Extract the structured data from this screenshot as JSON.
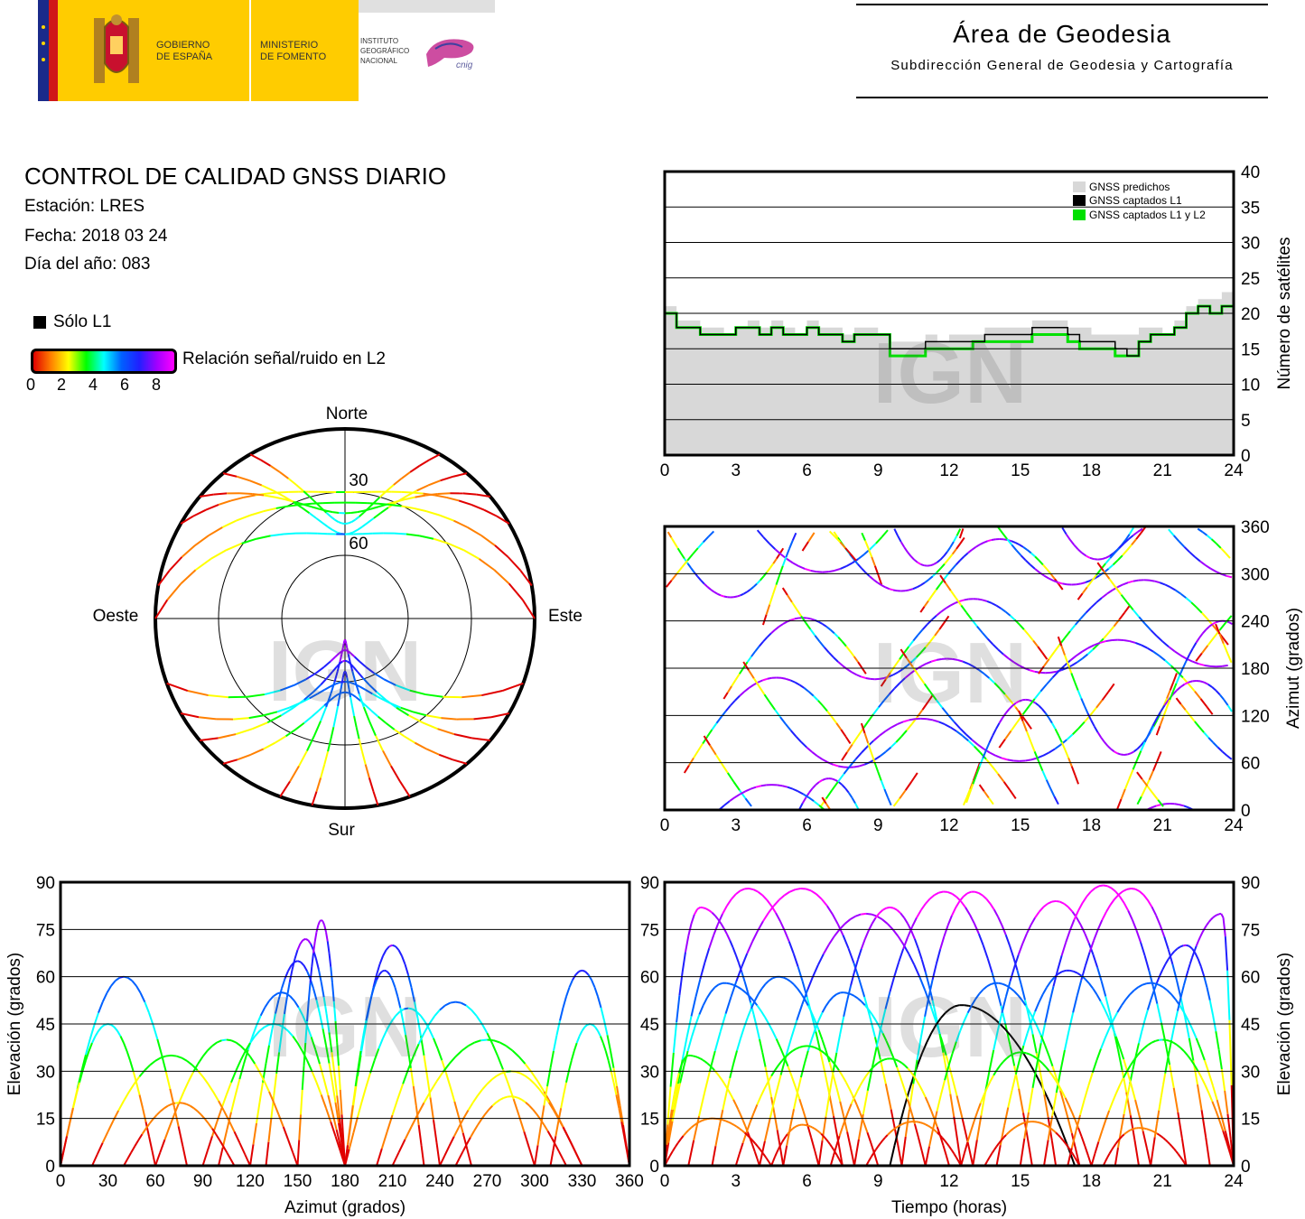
{
  "header": {
    "gov_logo": {
      "text1": "GOBIERNO",
      "text2": "DE ESPAÑA"
    },
    "ministry": {
      "text1": "MINISTERIO",
      "text2": "DE FOMENTO"
    },
    "institute": {
      "text1": "INSTITUTO",
      "text2": "GEOGRÁFICO",
      "text3": "NACIONAL",
      "mark": "cnig"
    },
    "area_title": "Área de Geodesia",
    "area_subtitle": "Subdirección General de Geodesia y Cartografía"
  },
  "info": {
    "title": "CONTROL DE CALIDAD GNSS DIARIO",
    "station": "Estación: LRES",
    "date": "Fecha: 2018 03 24",
    "doy": "Día del año: 083",
    "legend_l1": "Sólo L1",
    "colorbar_label": "Relación señal/ruido en L2",
    "colorbar_ticks": [
      "0",
      "2",
      "4",
      "6",
      "8"
    ]
  },
  "watermark": "IGN",
  "colors": {
    "predicted": "#d8d8d8",
    "l1": "#000000",
    "l1l2": "#00e000",
    "snr_scale": [
      "#e00000",
      "#ff8000",
      "#ffff00",
      "#00ff00",
      "#00ffff",
      "#0060ff",
      "#2020ff",
      "#a000ff",
      "#ff00ff"
    ]
  },
  "chart_data": [
    {
      "type": "polar",
      "id": "skyplot",
      "labels": {
        "north": "Norte",
        "south": "Sur",
        "east": "Este",
        "west": "Oeste"
      },
      "rings": [
        "30",
        "60"
      ],
      "elevation_mask_visible": "southern half dense; sparse north above 30°"
    },
    {
      "type": "area",
      "id": "satcount",
      "ylabel": "Número de satélites",
      "x": [
        0,
        0.5,
        1,
        1.5,
        2,
        2.5,
        3,
        3.5,
        4,
        4.5,
        5,
        5.5,
        6,
        6.5,
        7,
        7.5,
        8,
        8.5,
        9,
        9.5,
        10,
        10.5,
        11,
        11.5,
        12,
        12.5,
        13,
        13.5,
        14,
        14.5,
        15,
        15.5,
        16,
        16.5,
        17,
        17.5,
        18,
        18.5,
        19,
        19.5,
        20,
        20.5,
        21,
        21.5,
        22,
        22.5,
        23,
        23.5,
        24
      ],
      "series": [
        {
          "name": "GNSS predichos",
          "values": [
            21,
            19,
            19,
            18,
            18,
            17,
            18,
            19,
            18,
            19,
            18,
            17,
            19,
            18,
            18,
            17,
            18,
            18,
            17,
            16,
            16,
            16,
            17,
            16,
            17,
            17,
            17,
            18,
            18,
            18,
            18,
            19,
            19,
            19,
            18,
            18,
            17,
            17,
            17,
            17,
            18,
            18,
            17,
            19,
            21,
            22,
            22,
            23,
            23
          ]
        },
        {
          "name": "GNSS captados L1",
          "values": [
            20,
            18,
            18,
            17,
            17,
            17,
            18,
            18,
            17,
            18,
            17,
            17,
            18,
            17,
            17,
            16,
            17,
            17,
            17,
            15,
            15,
            15,
            16,
            16,
            16,
            16,
            16,
            17,
            17,
            17,
            17,
            18,
            18,
            18,
            17,
            16,
            16,
            16,
            15,
            14,
            16,
            17,
            17,
            18,
            20,
            21,
            20,
            21,
            22
          ]
        },
        {
          "name": "GNSS captados L1 y L2",
          "values": [
            20,
            18,
            18,
            17,
            17,
            17,
            18,
            18,
            17,
            18,
            17,
            17,
            18,
            17,
            17,
            16,
            17,
            17,
            17,
            14,
            14,
            14,
            15,
            15,
            15,
            15,
            16,
            16,
            16,
            16,
            16,
            17,
            17,
            17,
            16,
            15,
            15,
            15,
            14,
            14,
            16,
            17,
            17,
            18,
            20,
            21,
            20,
            21,
            22
          ]
        }
      ],
      "xlim": [
        0,
        24
      ],
      "ylim": [
        0,
        40
      ],
      "xticks": [
        "0",
        "3",
        "6",
        "9",
        "12",
        "15",
        "18",
        "21",
        "24"
      ],
      "yticks": [
        "0",
        "5",
        "10",
        "15",
        "20",
        "25",
        "30",
        "35",
        "40"
      ]
    },
    {
      "type": "scatter",
      "id": "azimuth_time",
      "ylabel": "Azimut (grados)",
      "xlim": [
        0,
        24
      ],
      "ylim": [
        0,
        360
      ],
      "xticks": [
        "0",
        "3",
        "6",
        "9",
        "12",
        "15",
        "18",
        "21",
        "24"
      ],
      "yticks": [
        "0",
        "60",
        "120",
        "180",
        "240",
        "300",
        "360"
      ],
      "series_count": 30
    },
    {
      "type": "scatter",
      "id": "elev_azimuth",
      "xlabel": "Azimut (grados)",
      "ylabel": "Elevación (grados)",
      "xlim": [
        0,
        360
      ],
      "ylim": [
        0,
        90
      ],
      "xticks": [
        "0",
        "30",
        "60",
        "90",
        "120",
        "150",
        "180",
        "210",
        "240",
        "270",
        "300",
        "330",
        "360"
      ],
      "yticks": [
        "0",
        "15",
        "30",
        "45",
        "60",
        "75",
        "90"
      ]
    },
    {
      "type": "line",
      "id": "elev_time",
      "xlabel": "Tiempo (horas)",
      "ylabel": "Elevación (grados)",
      "xlim": [
        0,
        24
      ],
      "ylim": [
        0,
        90
      ],
      "xticks": [
        "0",
        "3",
        "6",
        "9",
        "12",
        "15",
        "18",
        "21",
        "24"
      ],
      "yticks": [
        "0",
        "15",
        "30",
        "45",
        "60",
        "75",
        "90"
      ],
      "passes": [
        {
          "start": 0,
          "peak": 1.5,
          "end": 5,
          "max": 82
        },
        {
          "start": 0,
          "peak": 3.5,
          "end": 7.5,
          "max": 88
        },
        {
          "start": 1,
          "peak": 5.8,
          "end": 10,
          "max": 88
        },
        {
          "start": 4,
          "peak": 8.5,
          "end": 13,
          "max": 80
        },
        {
          "start": 6.5,
          "peak": 9.5,
          "end": 12.5,
          "max": 82
        },
        {
          "start": 8,
          "peak": 11.8,
          "end": 15.5,
          "max": 87
        },
        {
          "start": 9.5,
          "peak": 12.5,
          "end": 17.3,
          "max": 51
        },
        {
          "start": 10,
          "peak": 13,
          "end": 16.5,
          "max": 87
        },
        {
          "start": 13,
          "peak": 16.5,
          "end": 20,
          "max": 84
        },
        {
          "start": 15,
          "peak": 18.5,
          "end": 22,
          "max": 89
        },
        {
          "start": 16,
          "peak": 19.7,
          "end": 23,
          "max": 88
        },
        {
          "start": 19,
          "peak": 22,
          "end": 24,
          "max": 70
        },
        {
          "start": 20.5,
          "peak": 23.5,
          "end": 24,
          "max": 80
        },
        {
          "start": 0,
          "peak": 2.5,
          "end": 6.5,
          "max": 58
        },
        {
          "start": 2,
          "peak": 4.8,
          "end": 8,
          "max": 60
        },
        {
          "start": 5,
          "peak": 7.5,
          "end": 11,
          "max": 55
        },
        {
          "start": 11,
          "peak": 14,
          "end": 17.5,
          "max": 58
        },
        {
          "start": 14,
          "peak": 17,
          "end": 20.5,
          "max": 62
        },
        {
          "start": 17,
          "peak": 20.5,
          "end": 24,
          "max": 58
        },
        {
          "start": 0,
          "peak": 1,
          "end": 4,
          "max": 35
        },
        {
          "start": 3,
          "peak": 6,
          "end": 9,
          "max": 38
        },
        {
          "start": 7,
          "peak": 9.5,
          "end": 12,
          "max": 34
        },
        {
          "start": 12.5,
          "peak": 15,
          "end": 18,
          "max": 36
        },
        {
          "start": 18,
          "peak": 21,
          "end": 24,
          "max": 40
        },
        {
          "start": 0,
          "peak": 2,
          "end": 4.5,
          "max": 15
        },
        {
          "start": 4.5,
          "peak": 5.8,
          "end": 7.5,
          "max": 13
        },
        {
          "start": 8.5,
          "peak": 10.5,
          "end": 12.5,
          "max": 14
        },
        {
          "start": 13.5,
          "peak": 15.5,
          "end": 17.5,
          "max": 14
        },
        {
          "start": 18.5,
          "peak": 20,
          "end": 22,
          "max": 12
        }
      ]
    }
  ]
}
